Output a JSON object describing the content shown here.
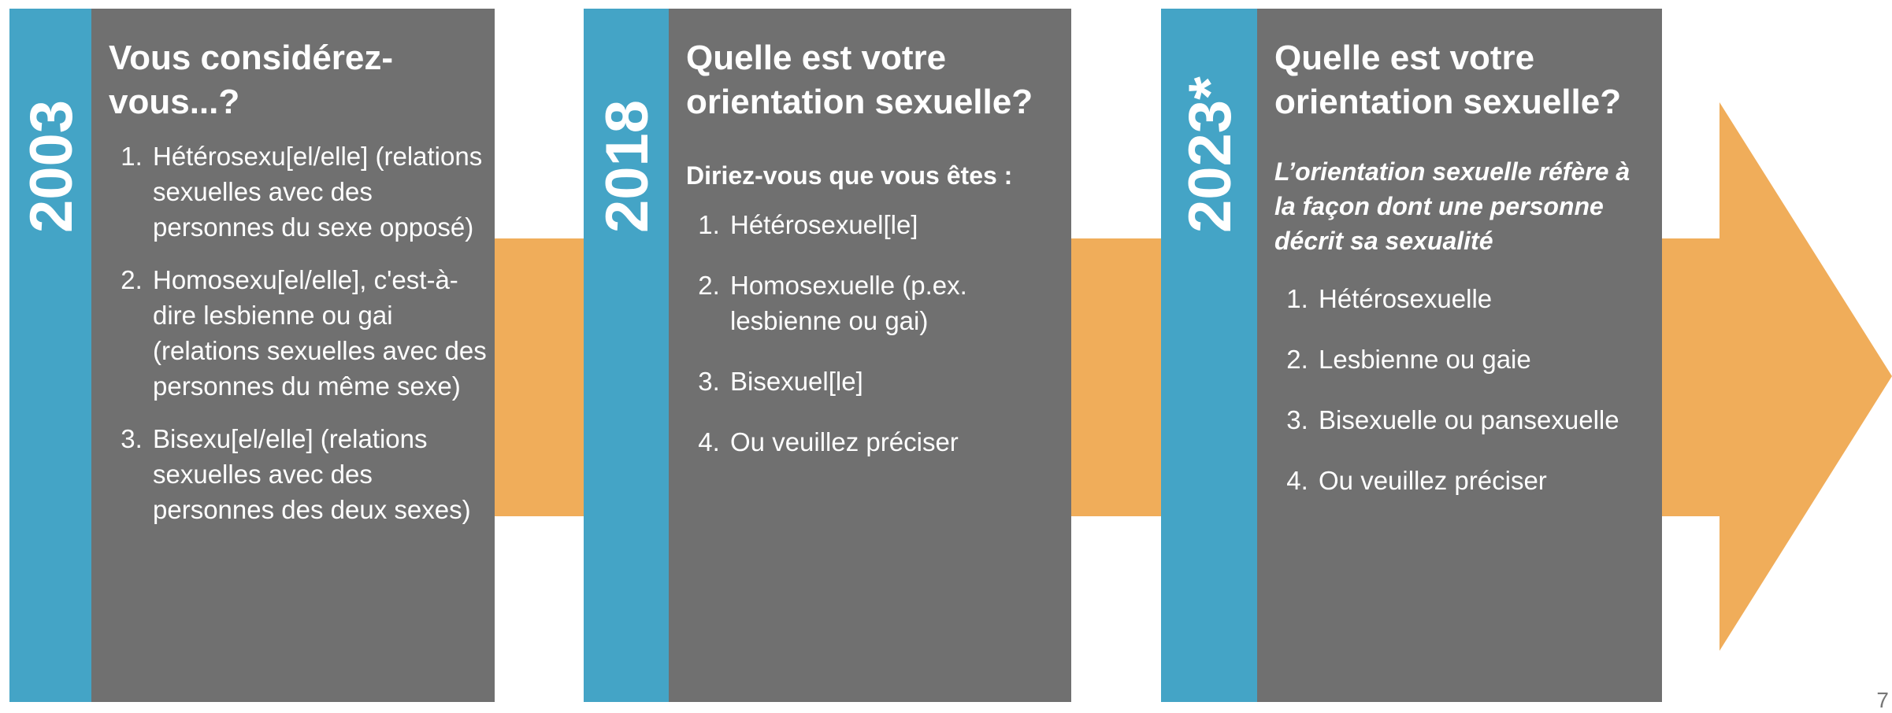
{
  "page_number": "7",
  "panels": [
    {
      "year": "2003",
      "title": "Vous considérez-vous...?",
      "items": [
        "Hétérosexu[el/elle] (relations sexuelles avec des personnes du sexe opposé)",
        "Homosexu[el/elle], c'est-à-dire lesbienne ou gai (relations sexuelles avec des personnes du même sexe)",
        "Bisexu[el/elle] (relations sexuelles avec des personnes des deux sexes)"
      ]
    },
    {
      "year": "2018",
      "title": "Quelle est votre orientation sexuelle?",
      "subtitle": "Diriez-vous que vous êtes :",
      "items": [
        "Hétérosexuel[le]",
        "Homosexuelle (p.ex. lesbienne ou gai)",
        "Bisexuel[le]",
        "Ou veuillez préciser"
      ]
    },
    {
      "year": "2023*",
      "title": "Quelle est votre orientation sexuelle?",
      "subtitle": "L’orientation sexuelle réfère à la façon dont une personne décrit sa sexualité",
      "items": [
        "Hétérosexuelle",
        "Lesbienne ou gaie",
        "Bisexuelle ou pansexuelle",
        "Ou veuillez préciser"
      ]
    }
  ]
}
